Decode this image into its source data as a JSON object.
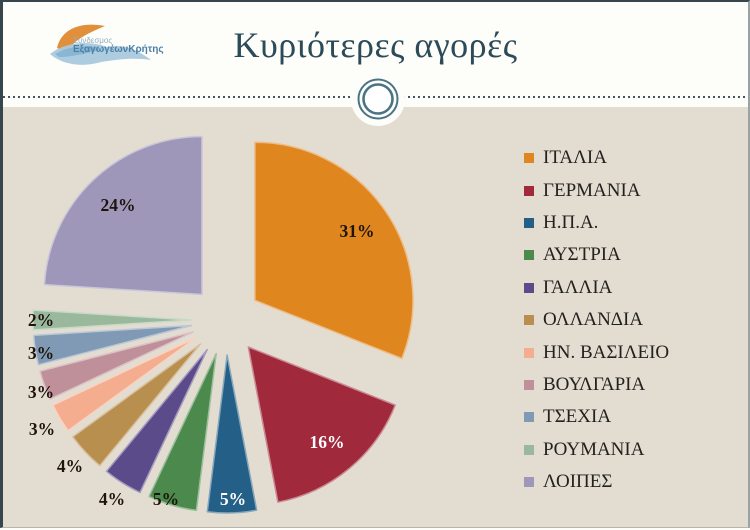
{
  "slide": {
    "title": "Κυριότερες αγορές",
    "logo": {
      "line1": "Σύνδεσμος",
      "line2": "ΕξαγωγέωνΚρήτης"
    }
  },
  "colors": {
    "background_beige": "#e3ddd1",
    "header_white": "#fdfdfa",
    "title_text": "#2c4b59",
    "divider": "#45565e",
    "ornament_ring": "#4a7484",
    "border_dark": "#37464d",
    "border_gray": "#9aa3a3",
    "label_dark": "#1e140c",
    "label_light": "#ffffff"
  },
  "chart_data": {
    "type": "pie",
    "title": "Κυριότερες αγορές",
    "legend_position": "right",
    "start_angle_deg": 0,
    "direction": "clockwise",
    "exploded": true,
    "segments": [
      {
        "label": "ΙΤΑΛΙΑ",
        "value": 31,
        "pct_label": "31%",
        "color": "#e0861f",
        "label_color": "#1e140c"
      },
      {
        "label": "ΓΕΡΜΑΝΙΑ",
        "value": 16,
        "pct_label": "16%",
        "color": "#a1293c",
        "label_color": "#ffffff"
      },
      {
        "label": "Η.Π.Α.",
        "value": 5,
        "pct_label": "5%",
        "color": "#235f86",
        "label_color": "#ffffff"
      },
      {
        "label": "ΑΥΣΤΡΙΑ",
        "value": 5,
        "pct_label": "5%",
        "color": "#4b8a4c",
        "label_color": "#1e140c"
      },
      {
        "label": "ΓΑΛΛΙΑ",
        "value": 4,
        "pct_label": "4%",
        "color": "#5c4b8b",
        "label_color": "#1e140c"
      },
      {
        "label": "ΟΛΛΑΝΔΙΑ",
        "value": 4,
        "pct_label": "4%",
        "color": "#b98f4f",
        "label_color": "#1e140c"
      },
      {
        "label": "ΗΝ. ΒΑΣΙΛΕΙΟ",
        "value": 3,
        "pct_label": "3%",
        "color": "#f5ad90",
        "label_color": "#1e140c"
      },
      {
        "label": "ΒΟΥΛΓΑΡΙΑ",
        "value": 3,
        "pct_label": "3%",
        "color": "#bf8f9a",
        "label_color": "#1e140c"
      },
      {
        "label": "ΤΣΕΧΙΑ",
        "value": 3,
        "pct_label": "3%",
        "color": "#8099b4",
        "label_color": "#1e140c"
      },
      {
        "label": "ΡΟΥΜΑΝΙΑ",
        "value": 2,
        "pct_label": "2%",
        "color": "#9ab99c",
        "label_color": "#1e140c"
      },
      {
        "label": "ΛΟΙΠΕΣ",
        "value": 24,
        "pct_label": "24%",
        "color": "#9e97ba",
        "label_color": "#1e140c"
      }
    ]
  }
}
